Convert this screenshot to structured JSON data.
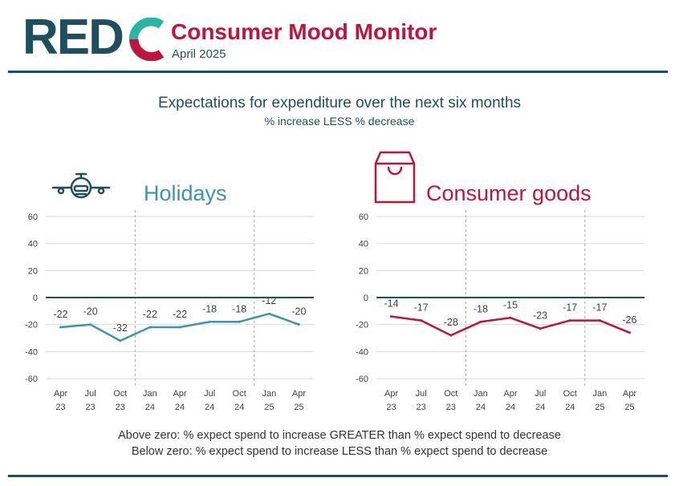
{
  "header": {
    "logo_text": "RED",
    "logo_letter": "C",
    "title": "Consumer Mood Monitor",
    "subtitle": "April 2025"
  },
  "main": {
    "title": "Expectations for expenditure over the next six months",
    "subtitle": "% increase LESS % decrease"
  },
  "notes": {
    "above": "Above zero: % expect spend to increase GREATER than % expect spend to decrease",
    "below": "Below zero: % expect spend to increase LESS than % expect spend to decrease"
  },
  "icons": [
    "airplane-icon",
    "shopping-bag-icon"
  ],
  "colors": {
    "brand_dark": "#1d4f5e",
    "brand_red": "#c0143c",
    "holidays": "#3b94b0",
    "goods": "#c0143c"
  },
  "chart_data": [
    {
      "type": "line",
      "title": "Holidays",
      "color": "#3b94b0",
      "categories": [
        "Apr 23",
        "Jul 23",
        "Oct 23",
        "Jan 24",
        "Apr 24",
        "Jul 24",
        "Oct 24",
        "Jan 25",
        "Apr 25"
      ],
      "x_labels": [
        [
          "Apr",
          "23"
        ],
        [
          "Jul",
          "23"
        ],
        [
          "Oct",
          "23"
        ],
        [
          "Jan",
          "24"
        ],
        [
          "Apr",
          "24"
        ],
        [
          "Jul",
          "24"
        ],
        [
          "Oct",
          "24"
        ],
        [
          "Jan",
          "25"
        ],
        [
          "Apr",
          "25"
        ]
      ],
      "values": [
        -22,
        -20,
        -32,
        -22,
        -22,
        -18,
        -18,
        -12,
        -20
      ],
      "data_labels": [
        "-22",
        "-20",
        "-32",
        "-22",
        "-22",
        "-18",
        "-18",
        "-12",
        "-20"
      ],
      "ylim": [
        -60,
        60
      ],
      "yticks": [
        "60",
        "40",
        "20",
        "0",
        "-20",
        "-40",
        "-60"
      ],
      "year_separators_after": [
        "Oct 23",
        "Oct 24"
      ],
      "grid": true
    },
    {
      "type": "line",
      "title": "Consumer goods",
      "color": "#c0143c",
      "categories": [
        "Apr 23",
        "Jul 23",
        "Oct 23",
        "Jan 24",
        "Apr 24",
        "Jul 24",
        "Oct 24",
        "Jan 25",
        "Apr 25"
      ],
      "x_labels": [
        [
          "Apr",
          "23"
        ],
        [
          "Jul",
          "23"
        ],
        [
          "Oct",
          "23"
        ],
        [
          "Jan",
          "24"
        ],
        [
          "Apr",
          "24"
        ],
        [
          "Jul",
          "24"
        ],
        [
          "Oct",
          "24"
        ],
        [
          "Jan",
          "25"
        ],
        [
          "Apr",
          "25"
        ]
      ],
      "values": [
        -14,
        -17,
        -28,
        -18,
        -15,
        -23,
        -17,
        -17,
        -26
      ],
      "data_labels": [
        "-14",
        "-17",
        "-28",
        "-18",
        "-15",
        "-23",
        "-17",
        "-17",
        "-26"
      ],
      "ylim": [
        -60,
        60
      ],
      "yticks": [
        "60",
        "40",
        "20",
        "0",
        "-20",
        "-40",
        "-60"
      ],
      "year_separators_after": [
        "Oct 23",
        "Oct 24"
      ],
      "grid": true
    }
  ]
}
